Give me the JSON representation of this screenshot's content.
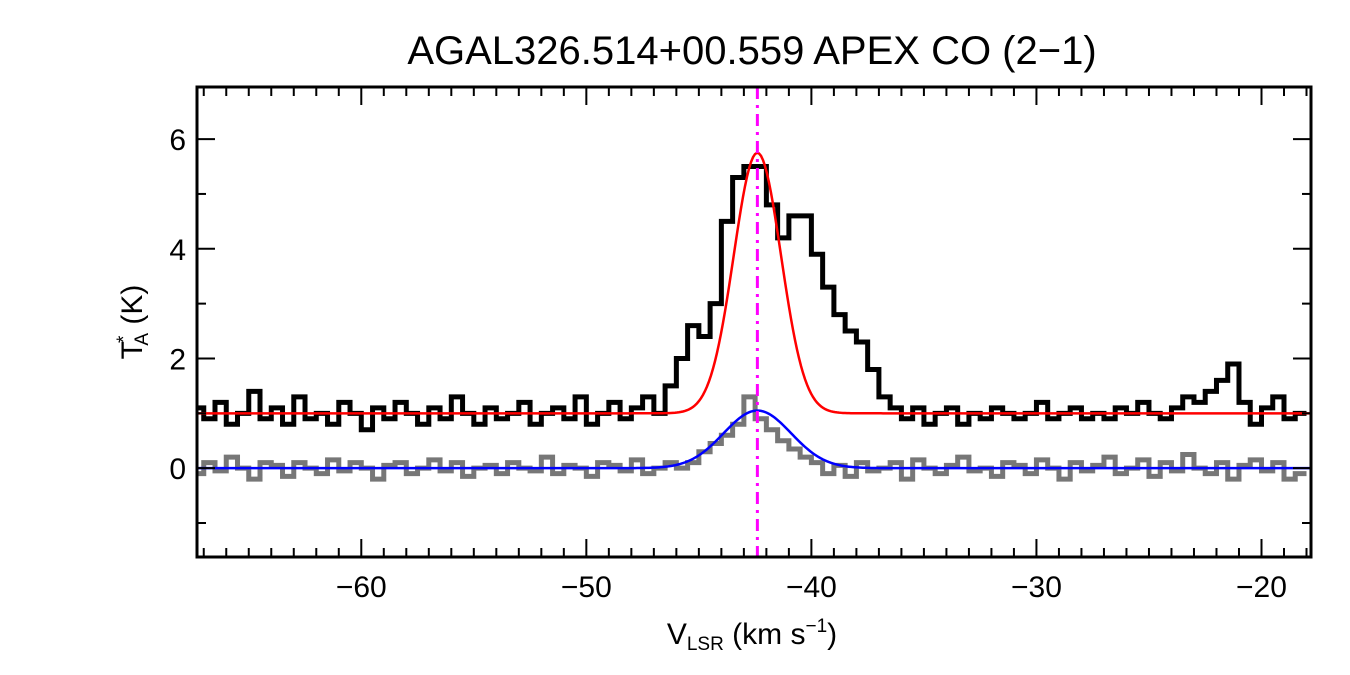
{
  "chart_data": {
    "type": "line",
    "title": "AGAL326.514+00.559  APEX CO (2−1)",
    "xlabel": {
      "main": "V",
      "sub": "LSR",
      "rest": " (km s",
      "sup": "−1",
      "end": ")"
    },
    "ylabel": {
      "main": "T",
      "sup": "*",
      "sub": "A",
      "rest": " (K)"
    },
    "xlim": [
      -67.3,
      -17.8
    ],
    "ylim": [
      -1.62,
      6.95
    ],
    "x_ticks": [
      -60,
      -50,
      -40,
      -30,
      -20
    ],
    "x_tick_labels": [
      "−60",
      "−50",
      "−40",
      "−30",
      "−20"
    ],
    "y_ticks": [
      0,
      2,
      4,
      6
    ],
    "y_tick_labels": [
      "0",
      "2",
      "4",
      "6"
    ],
    "grid": false,
    "x": [
      -67.25,
      -66.75,
      -66.25,
      -65.75,
      -65.25,
      -64.75,
      -64.25,
      -63.75,
      -63.25,
      -62.75,
      -62.25,
      -61.75,
      -61.25,
      -60.75,
      -60.25,
      -59.75,
      -59.25,
      -58.75,
      -58.25,
      -57.75,
      -57.25,
      -56.75,
      -56.25,
      -55.75,
      -55.25,
      -54.75,
      -54.25,
      -53.75,
      -53.25,
      -52.75,
      -52.25,
      -51.75,
      -51.25,
      -50.75,
      -50.25,
      -49.75,
      -49.25,
      -48.75,
      -48.25,
      -47.75,
      -47.25,
      -46.75,
      -46.25,
      -45.75,
      -45.25,
      -44.75,
      -44.25,
      -43.75,
      -43.25,
      -42.75,
      -42.25,
      -41.75,
      -41.25,
      -40.75,
      -40.25,
      -39.75,
      -39.25,
      -38.75,
      -38.25,
      -37.75,
      -37.25,
      -36.75,
      -36.25,
      -35.75,
      -35.25,
      -34.75,
      -34.25,
      -33.75,
      -33.25,
      -32.75,
      -32.25,
      -31.75,
      -31.25,
      -30.75,
      -30.25,
      -29.75,
      -29.25,
      -28.75,
      -28.25,
      -27.75,
      -27.25,
      -26.75,
      -26.25,
      -25.75,
      -25.25,
      -24.75,
      -24.25,
      -23.75,
      -23.25,
      -22.75,
      -22.25,
      -21.75,
      -21.25,
      -20.75,
      -20.25,
      -19.75,
      -19.25,
      -18.75,
      -18.25
    ],
    "series": [
      {
        "color": "#000000",
        "values": [
          1.1,
          0.9,
          1.2,
          0.8,
          1.0,
          1.4,
          0.9,
          1.1,
          0.8,
          1.3,
          0.9,
          1.0,
          0.8,
          1.2,
          1.0,
          0.7,
          1.1,
          0.9,
          1.2,
          1.0,
          0.8,
          1.1,
          0.9,
          1.3,
          1.0,
          0.8,
          1.1,
          0.9,
          1.0,
          1.2,
          0.8,
          1.0,
          1.1,
          0.9,
          1.3,
          0.8,
          1.0,
          1.2,
          0.9,
          1.1,
          1.3,
          1.0,
          1.5,
          2.0,
          2.6,
          2.4,
          3.0,
          4.5,
          5.3,
          5.5,
          5.5,
          4.8,
          4.2,
          4.6,
          4.6,
          3.9,
          3.3,
          2.8,
          2.5,
          2.3,
          1.8,
          1.3,
          1.1,
          0.9,
          1.1,
          0.8,
          1.0,
          1.1,
          0.8,
          1.0,
          0.9,
          1.1,
          1.0,
          0.9,
          1.0,
          1.2,
          0.9,
          1.0,
          1.1,
          0.9,
          1.0,
          0.9,
          1.1,
          1.0,
          1.2,
          1.0,
          0.9,
          1.1,
          1.3,
          1.2,
          1.4,
          1.6,
          1.9,
          1.2,
          0.8,
          1.1,
          1.3,
          0.9,
          1.0
        ]
      },
      {
        "color": "#777777",
        "values": [
          -0.1,
          0.1,
          -0.05,
          0.2,
          0.0,
          -0.2,
          0.1,
          0.05,
          -0.15,
          0.1,
          0.0,
          -0.1,
          0.15,
          -0.05,
          0.1,
          0.0,
          -0.2,
          0.05,
          0.1,
          -0.1,
          0.0,
          0.15,
          -0.05,
          0.1,
          -0.15,
          0.0,
          0.05,
          -0.1,
          0.1,
          0.0,
          -0.05,
          0.2,
          -0.1,
          0.05,
          0.0,
          -0.15,
          0.1,
          0.05,
          -0.05,
          0.15,
          -0.1,
          0.0,
          0.1,
          0.0,
          0.1,
          0.3,
          0.45,
          0.6,
          0.8,
          1.3,
          0.9,
          0.7,
          0.5,
          0.35,
          0.2,
          0.1,
          -0.1,
          0.05,
          -0.15,
          0.1,
          -0.05,
          0.0,
          0.1,
          -0.2,
          0.15,
          0.0,
          -0.1,
          0.05,
          0.2,
          -0.05,
          0.0,
          -0.15,
          0.1,
          0.05,
          -0.1,
          0.15,
          0.0,
          -0.2,
          0.1,
          -0.05,
          0.05,
          0.2,
          -0.1,
          0.0,
          0.15,
          -0.15,
          0.1,
          -0.05,
          0.25,
          0.0,
          -0.1,
          0.1,
          -0.2,
          0.05,
          0.15,
          -0.05,
          0.1,
          -0.2,
          -0.1
        ]
      }
    ],
    "fits": [
      {
        "color": "#ff0000",
        "baseline": 1.0,
        "amplitude": 4.75,
        "center": -42.4,
        "sigma": 1.05
      },
      {
        "color": "#0000ff",
        "baseline": 0.0,
        "amplitude": 1.05,
        "center": -42.4,
        "sigma": 1.5
      }
    ],
    "marker_line": {
      "color": "#ff00ff",
      "x": -42.4,
      "style": "dash-dot"
    }
  }
}
